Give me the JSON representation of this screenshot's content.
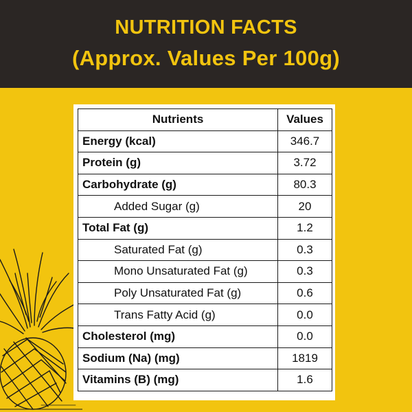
{
  "header": {
    "title": "NUTRITION FACTS",
    "subtitle": "(Approx. Values Per 100g)"
  },
  "colors": {
    "background": "#F2C40F",
    "header_bg": "#2B2624",
    "header_text": "#F2C40F"
  },
  "decoration": {
    "illustration": "pineapple-sketch"
  },
  "table": {
    "headers": {
      "nutrients": "Nutrients",
      "values": "Values"
    },
    "rows": [
      {
        "name": "Energy (kcal)",
        "value": "346.7",
        "bold": true,
        "indent": false
      },
      {
        "name": "Protein (g)",
        "value": "3.72",
        "bold": true,
        "indent": false
      },
      {
        "name": "Carbohydrate (g)",
        "value": "80.3",
        "bold": true,
        "indent": false
      },
      {
        "name": "Added Sugar (g)",
        "value": "20",
        "bold": false,
        "indent": true
      },
      {
        "name": "Total Fat (g)",
        "value": "1.2",
        "bold": true,
        "indent": false
      },
      {
        "name": "Saturated Fat (g)",
        "value": "0.3",
        "bold": false,
        "indent": true
      },
      {
        "name": "Mono Unsaturated Fat (g)",
        "value": "0.3",
        "bold": false,
        "indent": true
      },
      {
        "name": "Poly Unsaturated Fat (g)",
        "value": "0.6",
        "bold": false,
        "indent": true
      },
      {
        "name": "Trans Fatty Acid (g)",
        "value": "0.0",
        "bold": false,
        "indent": true
      },
      {
        "name": "Cholesterol (mg)",
        "value": "0.0",
        "bold": true,
        "indent": false
      },
      {
        "name": "Sodium (Na) (mg)",
        "value": "1819",
        "bold": true,
        "indent": false
      },
      {
        "name": "Vitamins (B) (mg)",
        "value": "1.6",
        "bold": true,
        "indent": false
      }
    ]
  }
}
